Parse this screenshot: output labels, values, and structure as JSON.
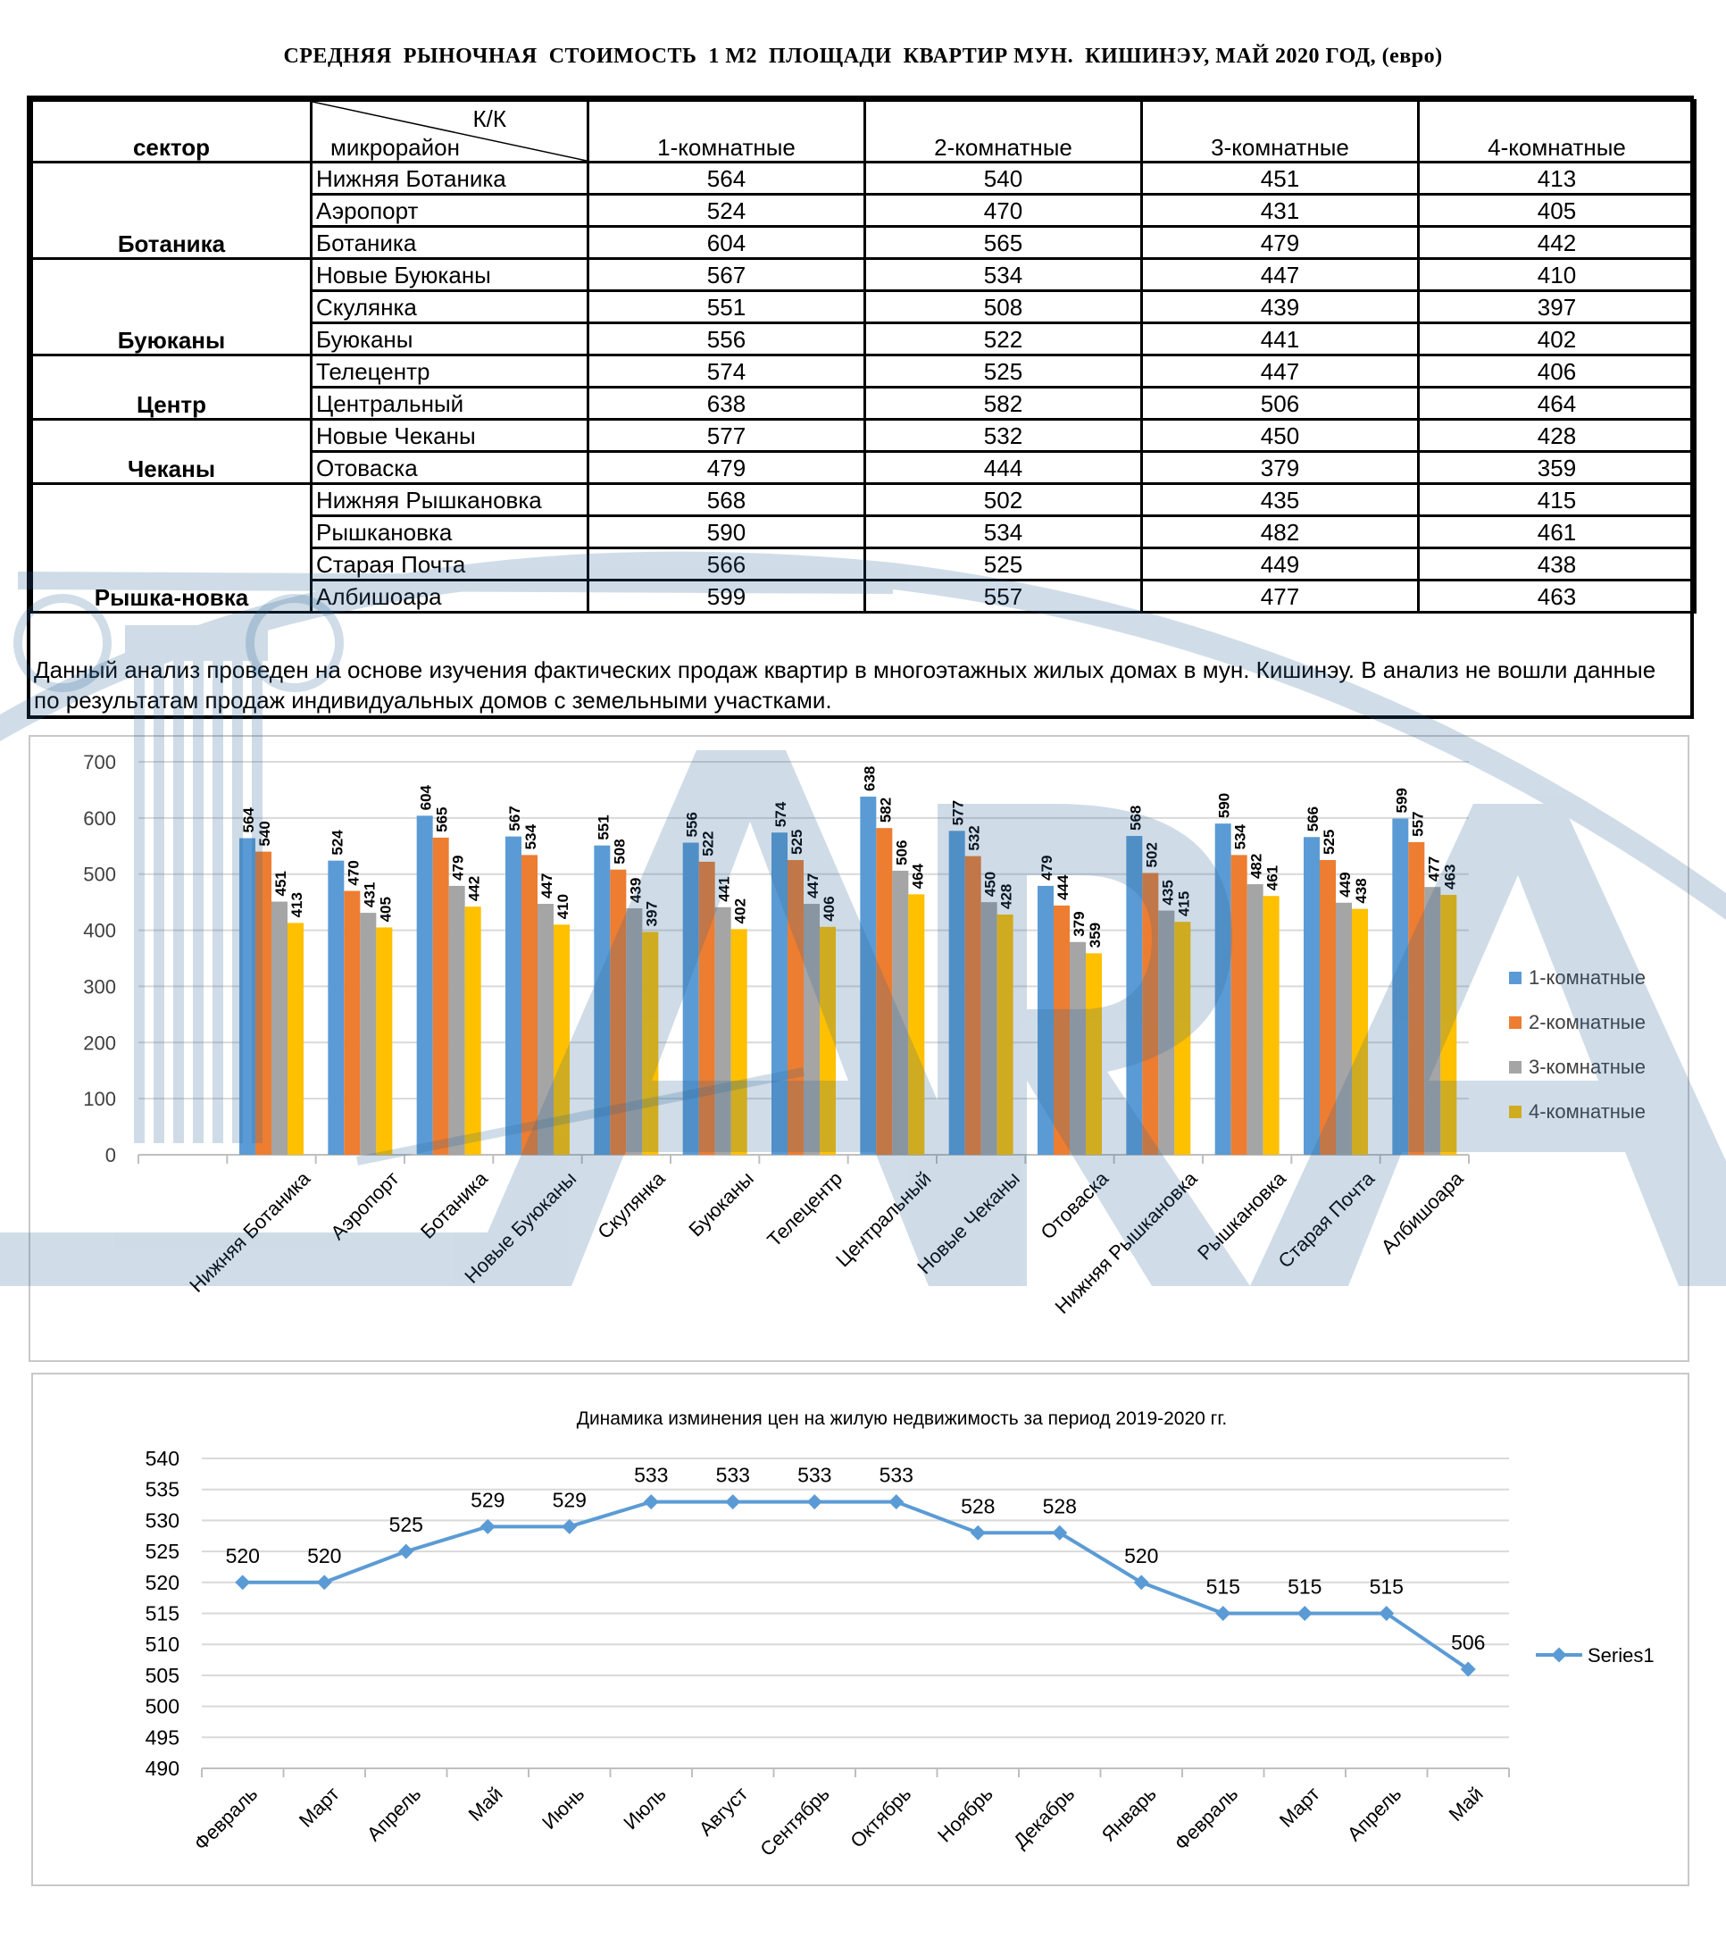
{
  "title": "СРЕДНЯЯ  РЫНОЧНАЯ  СТОИМОСТЬ  1 М2  ПЛОЩАДИ  КВАРТИР МУН.  КИШИНЭУ, МАЙ 2020 ГОД, (евро)",
  "table": {
    "header_sector": "сектор",
    "header_kk": "К/К",
    "header_micro": "микрорайон",
    "columns": [
      "1-комнатные",
      "2-комнатные",
      "3-комнатные",
      "4-комнатные"
    ],
    "groups": [
      {
        "sector": "Ботаника",
        "rows": [
          {
            "name": "Нижняя Ботаника",
            "values": [
              564,
              540,
              451,
              413
            ]
          },
          {
            "name": "Аэропорт",
            "values": [
              524,
              470,
              431,
              405
            ]
          },
          {
            "name": "Ботаника",
            "values": [
              604,
              565,
              479,
              442
            ]
          }
        ]
      },
      {
        "sector": "Буюканы",
        "rows": [
          {
            "name": "Новые Буюканы",
            "values": [
              567,
              534,
              447,
              410
            ]
          },
          {
            "name": "Скулянка",
            "values": [
              551,
              508,
              439,
              397
            ]
          },
          {
            "name": "Буюканы",
            "values": [
              556,
              522,
              441,
              402
            ]
          }
        ]
      },
      {
        "sector": "Центр",
        "rows": [
          {
            "name": "Телецентр",
            "values": [
              574,
              525,
              447,
              406
            ]
          },
          {
            "name": "Центральный",
            "values": [
              638,
              582,
              506,
              464
            ]
          }
        ]
      },
      {
        "sector": "Чеканы",
        "rows": [
          {
            "name": "Новые Чеканы",
            "values": [
              577,
              532,
              450,
              428
            ]
          },
          {
            "name": "Отоваска",
            "values": [
              479,
              444,
              379,
              359
            ]
          }
        ]
      },
      {
        "sector": "Рышка-новка",
        "rows": [
          {
            "name": "Нижняя Рышкановка",
            "values": [
              568,
              502,
              435,
              415
            ]
          },
          {
            "name": "Рышкановка",
            "values": [
              590,
              534,
              482,
              461
            ]
          },
          {
            "name": "Старая Почта",
            "values": [
              566,
              525,
              449,
              438
            ]
          },
          {
            "name": "Албишоара",
            "values": [
              599,
              557,
              477,
              463
            ]
          }
        ]
      }
    ],
    "note": "Данный анализ проведен на основе изучения фактических продаж квартир в многоэтажных жилых домах в мун. Кишинэу. В анализ не вошли данные по результатам  продаж индивидуальных домов с земельными участками."
  },
  "chart_data": [
    {
      "type": "bar",
      "title": "",
      "categories": [
        "Нижняя Ботаника",
        "Аэропорт",
        "Ботаника",
        "Новые Буюканы",
        "Скулянка",
        "Буюканы",
        "Телецентр",
        "Центральный",
        "Новые Чеканы",
        "Отоваска",
        "Нижняя Рышкановка",
        "Рышкановка",
        "Старая Почта",
        "Албишоара"
      ],
      "series": [
        {
          "name": "1-комнатные",
          "color": "#5B9BD5",
          "values": [
            564,
            524,
            604,
            567,
            551,
            556,
            574,
            638,
            577,
            479,
            568,
            590,
            566,
            599
          ]
        },
        {
          "name": "2-комнатные",
          "color": "#ED7D31",
          "values": [
            540,
            470,
            565,
            534,
            508,
            522,
            525,
            582,
            532,
            444,
            502,
            534,
            525,
            557
          ]
        },
        {
          "name": "3-комнатные",
          "color": "#A5A5A5",
          "values": [
            451,
            431,
            479,
            447,
            439,
            441,
            447,
            506,
            450,
            379,
            435,
            482,
            449,
            477
          ]
        },
        {
          "name": "4-комнатные",
          "color": "#FFC000",
          "values": [
            413,
            405,
            442,
            410,
            397,
            402,
            406,
            464,
            428,
            359,
            415,
            461,
            438,
            463
          ]
        }
      ],
      "ylim": [
        0,
        700
      ],
      "yticks": [
        0,
        100,
        200,
        300,
        400,
        500,
        600,
        700
      ],
      "grid": true,
      "legend": "right",
      "data_labels": true
    },
    {
      "type": "line",
      "title": "Динамика изминения цен на жилую недвижимость за период 2019-2020 гг.",
      "categories": [
        "Февраль",
        "Март",
        "Апрель",
        "Май",
        "Июнь",
        "Июль",
        "Август",
        "Сентябрь",
        "Октябрь",
        "Ноябрь",
        "Декабрь",
        "Январь",
        "Февраль",
        "Март",
        "Апрель",
        "Май"
      ],
      "series": [
        {
          "name": "Series1",
          "color": "#5B9BD5",
          "values": [
            520,
            520,
            525,
            529,
            529,
            533,
            533,
            533,
            533,
            528,
            528,
            520,
            515,
            515,
            515,
            506
          ]
        }
      ],
      "ylim": [
        490,
        540
      ],
      "yticks": [
        490,
        495,
        500,
        505,
        510,
        515,
        520,
        525,
        530,
        535,
        540
      ],
      "grid": true,
      "legend": "right",
      "data_labels": true
    }
  ]
}
